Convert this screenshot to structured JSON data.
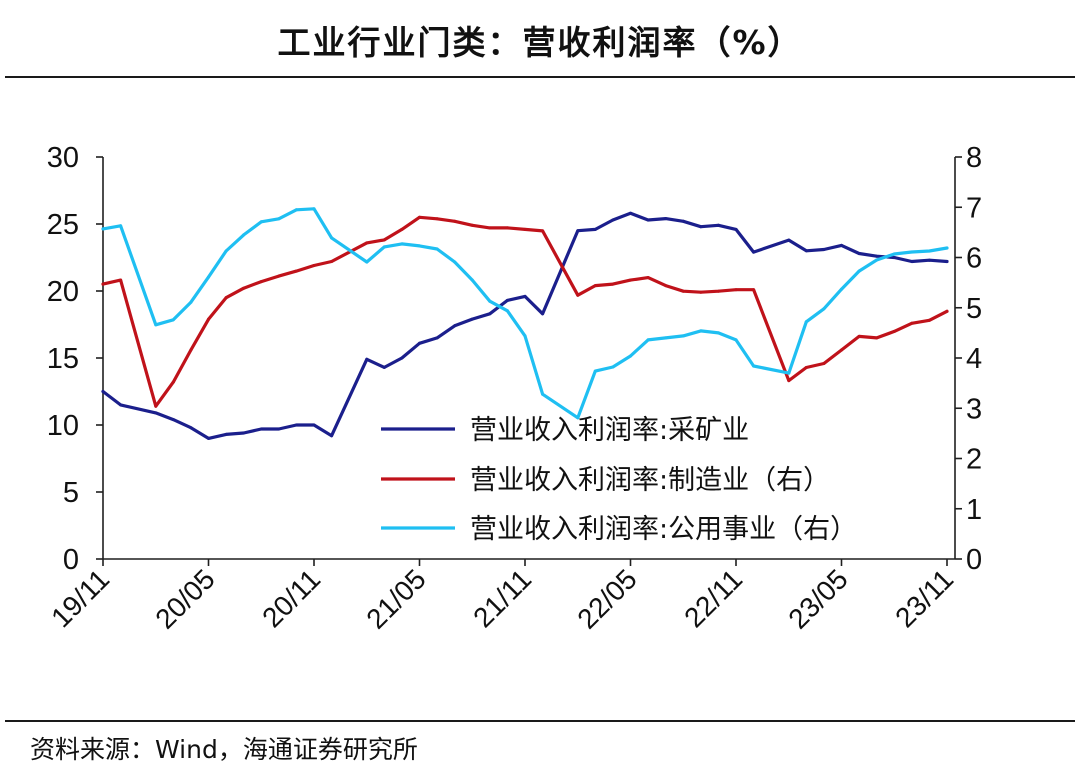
{
  "title": "工业行业门类：营收利润率（%）",
  "source": "资料来源：Wind，海通证券研究所",
  "colors": {
    "axis": "#1f1f1f",
    "text": "#111111"
  },
  "chart_data": {
    "type": "line",
    "title": "工业行业门类：营收利润率（%）",
    "xlim": [
      "19/11",
      "23/11"
    ],
    "x_tick_labels": [
      "19/11",
      "20/05",
      "20/11",
      "21/05",
      "21/11",
      "22/05",
      "22/11",
      "23/05",
      "23/11"
    ],
    "ylim_left": [
      0,
      30
    ],
    "yticks_left": [
      "0",
      "5",
      "10",
      "15",
      "20",
      "25",
      "30"
    ],
    "ylim_right": [
      0,
      8
    ],
    "yticks_right": [
      "0",
      "1",
      "2",
      "3",
      "4",
      "5",
      "6",
      "7",
      "8"
    ],
    "grid": false,
    "legend": "inside-lower-middle",
    "x": [
      "19/11",
      "19/12",
      "20/02",
      "20/03",
      "20/04",
      "20/05",
      "20/06",
      "20/07",
      "20/08",
      "20/09",
      "20/10",
      "20/11",
      "20/12",
      "21/02",
      "21/03",
      "21/04",
      "21/05",
      "21/06",
      "21/07",
      "21/08",
      "21/09",
      "21/10",
      "21/11",
      "21/12",
      "22/02",
      "22/03",
      "22/04",
      "22/05",
      "22/06",
      "22/07",
      "22/08",
      "22/09",
      "22/10",
      "22/11",
      "22/12",
      "23/02",
      "23/03",
      "23/04",
      "23/05",
      "23/06",
      "23/07",
      "23/08",
      "23/09",
      "23/10",
      "23/11"
    ],
    "series": [
      {
        "name": "营业收入利润率:采矿业",
        "axis": "left",
        "color": "#1b1f8c",
        "values": [
          12.5,
          11.5,
          10.9,
          10.4,
          9.8,
          9.0,
          9.3,
          9.4,
          9.7,
          9.7,
          10.0,
          10.0,
          9.2,
          14.9,
          14.3,
          15.0,
          16.1,
          16.5,
          17.4,
          17.9,
          18.3,
          19.3,
          19.6,
          18.3,
          24.5,
          24.6,
          25.3,
          25.8,
          25.3,
          25.4,
          25.2,
          24.8,
          24.9,
          24.6,
          22.9,
          23.8,
          23.0,
          23.1,
          23.4,
          22.8,
          22.6,
          22.5,
          22.2,
          22.3,
          22.2
        ]
      },
      {
        "name": "营业收入利润率:制造业（右）",
        "axis": "right",
        "color": "#c0121a",
        "values": [
          5.47,
          5.55,
          3.04,
          3.52,
          4.16,
          4.77,
          5.2,
          5.39,
          5.52,
          5.63,
          5.73,
          5.84,
          5.92,
          6.29,
          6.35,
          6.56,
          6.8,
          6.77,
          6.72,
          6.64,
          6.59,
          6.59,
          6.56,
          6.53,
          5.25,
          5.44,
          5.47,
          5.55,
          5.6,
          5.44,
          5.33,
          5.31,
          5.33,
          5.36,
          5.36,
          3.55,
          3.81,
          3.89,
          4.16,
          4.43,
          4.4,
          4.53,
          4.69,
          4.75,
          4.93
        ]
      },
      {
        "name": "营业收入利润率:公用事业（右）",
        "axis": "right",
        "color": "#1fbff2",
        "values": [
          6.57,
          6.63,
          4.66,
          4.76,
          5.11,
          5.61,
          6.13,
          6.45,
          6.71,
          6.77,
          6.95,
          6.97,
          6.39,
          5.91,
          6.21,
          6.27,
          6.23,
          6.17,
          5.91,
          5.55,
          5.13,
          4.94,
          4.44,
          3.28,
          2.81,
          3.74,
          3.82,
          4.04,
          4.36,
          4.4,
          4.44,
          4.54,
          4.5,
          4.36,
          3.84,
          3.7,
          4.72,
          4.98,
          5.37,
          5.73,
          5.95,
          6.07,
          6.11,
          6.13,
          6.19
        ]
      }
    ]
  }
}
